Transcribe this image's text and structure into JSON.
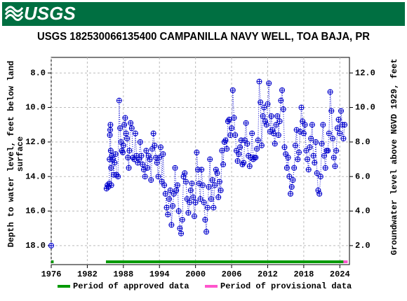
{
  "header": {
    "logo": "USGS"
  },
  "chart_data": {
    "type": "line",
    "title": "USGS 182530066135400 CAMPANILLA NAVY WELL, TOA BAJA, PR",
    "ylabel": [
      "Depth to water level, feet below land",
      "surface"
    ],
    "y2label": "Groundwater level above NGVD 1929, feet",
    "y_inverted": true,
    "grid": true,
    "xlim": [
      1976,
      2025.6
    ],
    "xticks": [
      1976,
      1982,
      1988,
      1994,
      2000,
      2006,
      2012,
      2018,
      2024
    ],
    "ylim": [
      7.1,
      19.1
    ],
    "yticks": [
      {
        "value": 8,
        "label": "8.0"
      },
      {
        "value": 10,
        "label": "10.0"
      },
      {
        "value": 12,
        "label": "12.0"
      },
      {
        "value": 14,
        "label": "14.0"
      },
      {
        "value": 16,
        "label": "16.0"
      },
      {
        "value": 18,
        "label": "18.0"
      }
    ],
    "y2lim": [
      0.9,
      12.9
    ],
    "y2ticks": [
      {
        "value": 2,
        "label": "2.0"
      },
      {
        "value": 4,
        "label": "4.0"
      },
      {
        "value": 6,
        "label": "6.0"
      },
      {
        "value": 8,
        "label": "8.0"
      },
      {
        "value": 10,
        "label": "10.0"
      },
      {
        "value": 12,
        "label": "12.0"
      }
    ],
    "x": [
      1976.0,
      1980,
      1985.2,
      1985.35,
      1985.5,
      1985.65,
      1985.7,
      1985.75,
      1985.8,
      1985.85,
      1985.9,
      1985.95,
      1986.0,
      1986.1,
      1986.25,
      1986.4,
      1986.55,
      1986.7,
      1986.85,
      1987.1,
      1987.3,
      1987.45,
      1987.6,
      1987.75,
      1987.9,
      1988.0,
      1988.15,
      1988.3,
      1988.45,
      1988.6,
      1988.75,
      1988.9,
      1989.0,
      1989.2,
      1989.4,
      1989.6,
      1989.8,
      1990.0,
      1990.2,
      1990.4,
      1990.6,
      1990.8,
      1991.0,
      1991.2,
      1991.4,
      1991.6,
      1991.8,
      1992.0,
      1992.2,
      1992.4,
      1992.6,
      1992.8,
      1993.0,
      1993.2,
      1993.4,
      1993.6,
      1993.8,
      1994.0,
      1994.2,
      1994.4,
      1994.6,
      1994.8,
      1995.0,
      1995.2,
      1995.4,
      1995.6,
      1995.8,
      1996.0,
      1996.2,
      1996.4,
      1996.6,
      1996.8,
      1997.0,
      1997.2,
      1997.4,
      1997.6,
      1997.8,
      1998.0,
      1998.2,
      1998.4,
      1998.6,
      1998.8,
      1999.0,
      1999.2,
      1999.4,
      1999.6,
      1999.8,
      2000.0,
      2000.2,
      2000.4,
      2000.6,
      2000.8,
      2001.0,
      2001.2,
      2001.4,
      2001.6,
      2001.8,
      2002.0,
      2002.2,
      2002.4,
      2002.6,
      2002.8,
      2003.0,
      2003.2,
      2003.4,
      2003.6,
      2003.8,
      2004.0,
      2004.2,
      2004.4,
      2004.6,
      2004.8,
      2005.0,
      2005.2,
      2005.4,
      2005.6,
      2005.8,
      2006.0,
      2006.2,
      2006.4,
      2006.6,
      2006.8,
      2007.0,
      2007.2,
      2007.4,
      2007.6,
      2007.8,
      2008.0,
      2008.2,
      2008.4,
      2008.6,
      2008.8,
      2009.0,
      2009.2,
      2009.4,
      2009.6,
      2009.8,
      2010.0,
      2010.2,
      2010.4,
      2010.6,
      2010.8,
      2011.0,
      2011.2,
      2011.4,
      2011.6,
      2011.8,
      2012.0,
      2012.2,
      2012.4,
      2012.6,
      2012.8,
      2013.0,
      2013.2,
      2013.4,
      2013.6,
      2013.8,
      2014.0,
      2014.2,
      2014.4,
      2014.6,
      2014.8,
      2015.0,
      2015.2,
      2015.4,
      2015.6,
      2015.8,
      2016.0,
      2016.2,
      2016.4,
      2016.6,
      2016.8,
      2017.0,
      2017.2,
      2017.4,
      2017.6,
      2017.8,
      2018.0,
      2018.2,
      2018.4,
      2018.6,
      2018.8,
      2019.0,
      2019.2,
      2019.4,
      2019.6,
      2019.8,
      2020.0,
      2020.2,
      2020.4,
      2020.6,
      2020.8,
      2021.0,
      2021.2,
      2021.4,
      2021.6,
      2021.8,
      2022.0,
      2022.2,
      2022.4,
      2022.6,
      2022.8,
      2023.0,
      2023.2,
      2023.4,
      2023.6,
      2023.8,
      2024.0,
      2024.2,
      2024.4,
      2024.6,
      2024.8
    ],
    "series": [
      {
        "color": "#0000cc",
        "values": [
          18.0,
          null,
          14.7,
          14.5,
          14.6,
          14.4,
          13.0,
          11.6,
          11.3,
          11.0,
          12.5,
          13.5,
          14.5,
          12.8,
          13.0,
          13.9,
          13.2,
          12.7,
          13.9,
          14.0,
          9.6,
          11.2,
          12.0,
          12.5,
          12.6,
          12.2,
          11.0,
          10.6,
          11.5,
          11.8,
          12.9,
          13.5,
          12.5,
          10.9,
          11.2,
          12.9,
          13.0,
          11.5,
          12.8,
          13.2,
          13.0,
          12.0,
          12.8,
          13.3,
          13.6,
          14.0,
          12.5,
          13.5,
          12.8,
          13.0,
          14.2,
          12.4,
          11.5,
          12.2,
          12.9,
          13.2,
          14.0,
          12.9,
          12.3,
          14.3,
          12.7,
          14.5,
          15.0,
          15.8,
          16.2,
          15.3,
          14.8,
          16.8,
          15.7,
          15.0,
          13.5,
          14.8,
          14.5,
          16.0,
          17.0,
          17.3,
          16.5,
          14.0,
          13.8,
          14.3,
          15.3,
          16.1,
          15.5,
          14.8,
          14.4,
          15.2,
          16.3,
          15.5,
          12.6,
          13.6,
          14.4,
          15.3,
          13.6,
          14.5,
          15.5,
          16.5,
          17.2,
          15.8,
          14.6,
          13.0,
          15.3,
          14.2,
          15.8,
          14.5,
          13.6,
          13.8,
          15.2,
          14.3,
          14.8,
          12.5,
          13.3,
          12.0,
          11.9,
          12.4,
          10.8,
          10.7,
          11.6,
          11.2,
          9.0,
          10.6,
          11.6,
          12.5,
          13.1,
          12.7,
          12.3,
          11.9,
          13.3,
          13.2,
          11.9,
          10.9,
          12.1,
          12.8,
          13.4,
          12.9,
          11.5,
          13.0,
          12.9,
          12.9,
          12.4,
          11.9,
          8.5,
          9.7,
          12.2,
          10.5,
          10.0,
          10.8,
          11.0,
          9.8,
          8.6,
          11.4,
          10.5,
          11.3,
          11.5,
          12.1,
          11.0,
          10.5,
          11.6,
          10.8,
          9.6,
          9.0,
          10.1,
          12.3,
          12.7,
          13.5,
          12.9,
          14.0,
          15.0,
          14.6,
          14.2,
          13.5,
          12.2,
          11.3,
          13.0,
          12.6,
          11.4,
          10.0,
          10.8,
          11.5,
          11.0,
          12.5,
          13.0,
          13.6,
          12.3,
          11.8,
          11.0,
          12.8,
          13.2,
          12.0,
          13.8,
          14.8,
          15.0,
          14.0,
          12.1,
          11.0,
          12.8,
          13.5,
          12.5,
          12.5,
          11.5,
          9.1,
          10.2,
          11.8,
          12.9,
          13.4,
          12.5,
          11.2,
          10.7,
          11.5,
          10.2,
          11.0,
          11.8,
          11.0
        ]
      }
    ],
    "periods": [
      {
        "name": "Period of approved data",
        "color": "#009900",
        "ranges": [
          [
            1976,
            1976.4
          ],
          [
            1985.1,
            2024.6
          ]
        ]
      },
      {
        "name": "Period of provisional data",
        "color": "#ff55cc",
        "ranges": [
          [
            2024.6,
            2025.3
          ]
        ]
      }
    ]
  }
}
